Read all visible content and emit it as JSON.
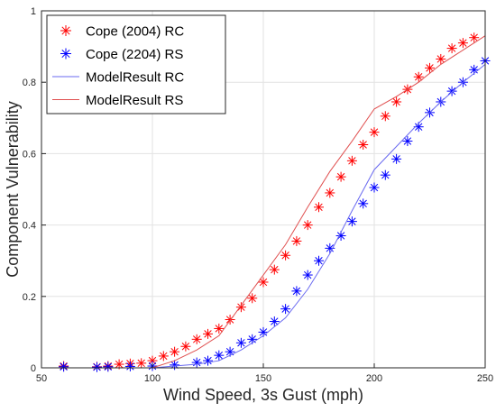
{
  "chart_data": {
    "type": "line",
    "xlabel": "Wind Speed, 3s Gust (mph)",
    "ylabel": "Component Vulnerability",
    "xlim": [
      50,
      250
    ],
    "ylim": [
      0,
      1
    ],
    "x_ticks": [
      "50",
      "100",
      "150",
      "200",
      "250"
    ],
    "y_ticks": [
      "0",
      "0.2",
      "0.4",
      "0.6",
      "0.8",
      "1"
    ],
    "grid": true,
    "legend_position": "top-left",
    "series": [
      {
        "name": "Cope (2004) RC",
        "kind": "markers",
        "marker": "asterisk",
        "color": "#ff0000",
        "x": [
          60,
          75,
          80,
          85,
          90,
          95,
          100,
          105,
          110,
          115,
          120,
          125,
          130,
          135,
          140,
          145,
          150,
          155,
          160,
          165,
          170,
          175,
          180,
          185,
          190,
          195,
          200,
          205,
          210,
          215,
          220,
          225,
          230,
          235,
          240,
          245
        ],
        "y": [
          0.005,
          0.003,
          0.005,
          0.01,
          0.012,
          0.013,
          0.02,
          0.033,
          0.045,
          0.06,
          0.08,
          0.095,
          0.11,
          0.135,
          0.17,
          0.195,
          0.24,
          0.275,
          0.315,
          0.355,
          0.4,
          0.45,
          0.49,
          0.535,
          0.58,
          0.625,
          0.66,
          0.705,
          0.745,
          0.78,
          0.815,
          0.84,
          0.865,
          0.895,
          0.91,
          0.925
        ]
      },
      {
        "name": "Cope (2204) RS",
        "kind": "markers",
        "marker": "asterisk",
        "color": "#0000ff",
        "x": [
          60,
          75,
          80,
          90,
          100,
          110,
          120,
          125,
          130,
          135,
          140,
          145,
          150,
          155,
          160,
          165,
          170,
          175,
          180,
          185,
          190,
          195,
          200,
          205,
          210,
          215,
          220,
          225,
          230,
          235,
          240,
          245,
          250
        ],
        "y": [
          0.003,
          0.002,
          0.003,
          0.004,
          0.005,
          0.008,
          0.015,
          0.02,
          0.035,
          0.045,
          0.07,
          0.08,
          0.1,
          0.13,
          0.165,
          0.215,
          0.26,
          0.3,
          0.335,
          0.37,
          0.41,
          0.46,
          0.505,
          0.54,
          0.585,
          0.635,
          0.675,
          0.715,
          0.745,
          0.775,
          0.8,
          0.835,
          0.86
        ]
      },
      {
        "name": "ModelResult RC",
        "kind": "line",
        "color": "#6a6af0",
        "x": [
          50,
          100,
          110,
          120,
          130,
          140,
          150,
          160,
          170,
          180,
          190,
          200,
          210,
          220,
          230,
          240,
          250
        ],
        "y": [
          0,
          0,
          0.005,
          0.01,
          0.02,
          0.05,
          0.09,
          0.14,
          0.22,
          0.32,
          0.44,
          0.555,
          0.62,
          0.685,
          0.745,
          0.8,
          0.85
        ]
      },
      {
        "name": "ModelResult RS",
        "kind": "line",
        "color": "#e05050",
        "x": [
          50,
          100,
          110,
          120,
          130,
          140,
          150,
          160,
          170,
          180,
          190,
          200,
          210,
          220,
          230,
          240,
          250
        ],
        "y": [
          0,
          0,
          0.02,
          0.05,
          0.09,
          0.175,
          0.26,
          0.345,
          0.45,
          0.55,
          0.635,
          0.725,
          0.76,
          0.8,
          0.85,
          0.89,
          0.93
        ]
      }
    ]
  }
}
